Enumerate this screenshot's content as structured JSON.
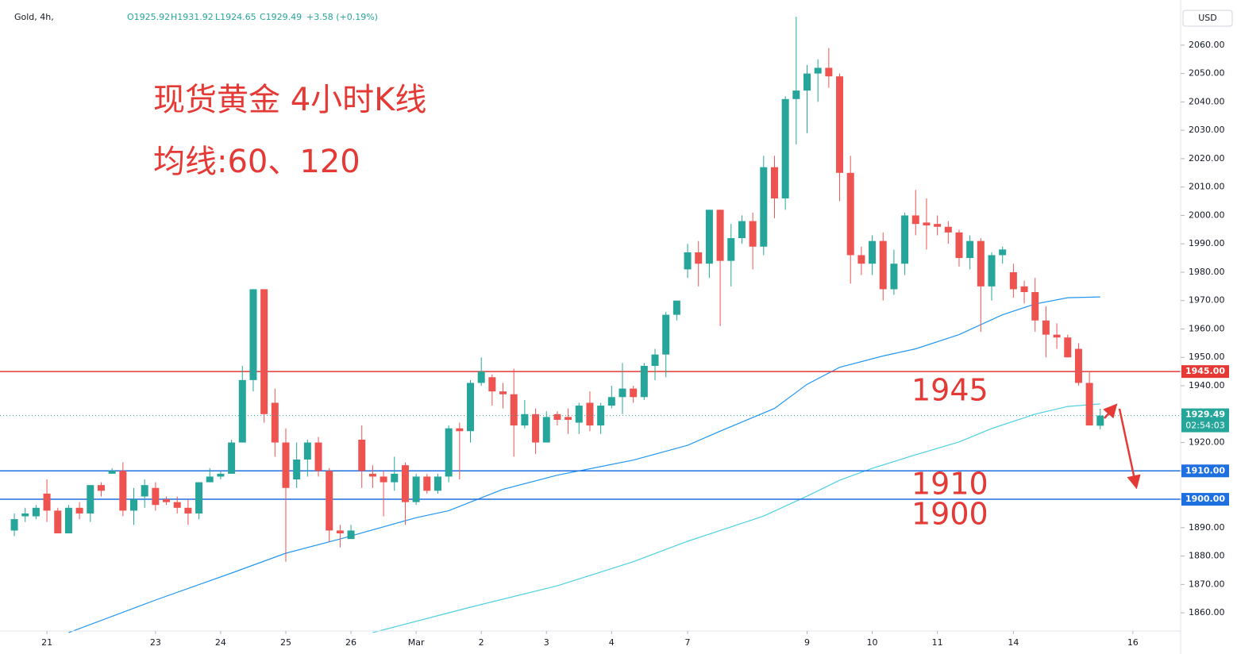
{
  "chart_data": {
    "type": "candlestick",
    "symbol": "Gold, 4h,",
    "ohlc": [
      "O1925.92",
      "H1931.92",
      "L1924.65",
      "C1929.49",
      "+3.58 (+0.19%)"
    ],
    "currency": "USD",
    "title": "现货黄金 4小时K线",
    "subtitle": "均线:60、120",
    "annotations": [
      "1945",
      "1910",
      "1900"
    ],
    "up_color": "#26a69a",
    "down_color": "#ef5350",
    "open": [
      1889,
      1894,
      1894,
      1902,
      1896,
      1888,
      1897,
      1895,
      1905,
      1909,
      1910,
      1896,
      1901,
      1904,
      1900,
      1899,
      1897,
      1895,
      1906,
      1908,
      1909,
      1920,
      1942,
      1974,
      1934,
      1920,
      1907,
      1914,
      1920,
      1910,
      1889,
      1886,
      1921,
      1909,
      1908,
      1906,
      1912,
      1899,
      1908,
      1903,
      1908,
      1925,
      1924,
      1941,
      1943,
      1938,
      1937,
      1926,
      1930,
      1920,
      1930,
      1929,
      1927,
      1934,
      1926,
      1933,
      1936,
      1939,
      1936,
      1947,
      1951,
      1965,
      1981,
      1987,
      1983,
      2002,
      1984,
      1992,
      1998,
      1989,
      2017,
      2006,
      2041,
      2044,
      2050,
      2052,
      2049,
      2015,
      1986,
      1983,
      1991,
      1974,
      1983,
      2000,
      1997.5,
      1997,
      1996,
      1994,
      1985,
      1991,
      1975,
      1986,
      1980,
      1975,
      1973,
      1963,
      1958,
      1957,
      1953,
      1941,
      1925.92
    ],
    "high": [
      1895,
      1897,
      1898,
      1907,
      1897,
      1898,
      1899,
      1905,
      1906,
      1911,
      1913,
      1904,
      1907,
      1906,
      1901,
      1901,
      1900,
      1906,
      1911,
      1910,
      1921,
      1947,
      1974,
      1974,
      1939,
      1925,
      1920,
      1921,
      1922,
      1911,
      1891,
      1891,
      1926,
      1912,
      1910,
      1915,
      1913,
      1909,
      1909,
      1909,
      1926,
      1927,
      1942,
      1950,
      1944,
      1941,
      1946,
      1935,
      1932,
      1931,
      1931,
      1932,
      1934,
      1938,
      1934,
      1940,
      1948,
      1940,
      1948,
      1953,
      1966,
      1970,
      1990,
      1991,
      2002,
      2002,
      1997,
      2000,
      2001,
      2021,
      2021,
      2042,
      2070,
      2053,
      2055,
      2059,
      2050,
      2021,
      1989,
      1993,
      1994,
      1988,
      2001,
      2009,
      2006,
      2000,
      1998,
      1995,
      1993,
      1992,
      1987,
      1989,
      1983,
      1977,
      1978,
      1968,
      1962,
      1958,
      1955,
      1945,
      1931.92
    ],
    "low": [
      1887,
      1892,
      1893,
      1892,
      1888,
      1888,
      1893,
      1892,
      1901,
      1909,
      1894,
      1891,
      1897,
      1896,
      1898,
      1895,
      1891,
      1893,
      1906,
      1907,
      1909,
      1920,
      1938,
      1927,
      1915,
      1878,
      1904,
      1908,
      1908,
      1885,
      1883,
      1886,
      1904,
      1904,
      1894,
      1903,
      1891,
      1898,
      1902,
      1902,
      1906,
      1907,
      1920,
      1940,
      1933,
      1932,
      1915,
      1925,
      1916,
      1920,
      1926,
      1923,
      1923,
      1924,
      1923,
      1932,
      1930,
      1934,
      1935,
      1942,
      1943,
      1963,
      1978,
      1975,
      1978,
      1961,
      1975,
      1990,
      1981,
      1986,
      1999,
      2002,
      2025,
      2029,
      2040,
      2045,
      2005,
      1976,
      1979,
      1979,
      1970,
      1972,
      1979,
      1993,
      1988,
      1993,
      1990,
      1982,
      1981,
      1959,
      1970,
      1983,
      1971,
      1969,
      1959,
      1950,
      1953,
      1950,
      1940,
      1926,
      1924.65
    ],
    "close": [
      1893,
      1895,
      1897,
      1896,
      1888,
      1897,
      1895,
      1905,
      1903,
      1910,
      1896,
      1900,
      1905,
      1898,
      1899,
      1897,
      1895,
      1906,
      1908,
      1909,
      1920,
      1942,
      1974,
      1930,
      1920,
      1904,
      1914,
      1920,
      1910,
      1889,
      1888,
      1889,
      1910,
      1908,
      1906,
      1909,
      1899,
      1908,
      1903,
      1908,
      1925,
      1924,
      1941,
      1945,
      1938,
      1937,
      1926,
      1930,
      1920,
      1929,
      1928,
      1928,
      1933,
      1926,
      1933,
      1936,
      1939,
      1936,
      1947,
      1951,
      1965,
      1970,
      1987,
      1983,
      2002,
      1984,
      1992,
      1998,
      1989,
      2017,
      2006,
      2041,
      2044,
      2050,
      2052,
      2049,
      2015,
      1986,
      1983,
      1991,
      1974,
      1983,
      2000,
      1997,
      1996.5,
      1996,
      1994,
      1985,
      1991,
      1975,
      1986,
      1988,
      1974,
      1973,
      1963,
      1958,
      1957,
      1950,
      1941,
      1926,
      1929.49
    ],
    "ma": [
      {
        "color": "#2196f3",
        "x": [
          5,
          13,
          20,
          25,
          30,
          37,
          40,
          45,
          50,
          57,
          62,
          65,
          70,
          73,
          76,
          80,
          83,
          87,
          91,
          94,
          97,
          100
        ],
        "values": [
          1853,
          1864.5,
          1874,
          1881,
          1886,
          1893.5,
          1896,
          1903.5,
          1908.5,
          1913.8,
          1919,
          1924,
          1932,
          1940.5,
          1946.5,
          1950.5,
          1953,
          1958,
          1965,
          1968.8,
          1971,
          1971.3
        ]
      },
      {
        "color": "#4dd0e1",
        "x": [
          33,
          42,
          50,
          57,
          62,
          69,
          73,
          76,
          79,
          83,
          87,
          90,
          94,
          97,
          100
        ],
        "values": [
          1853,
          1862,
          1869.5,
          1878,
          1885.2,
          1894.1,
          1901.1,
          1906.7,
          1910.9,
          1915.7,
          1920.2,
          1924.9,
          1930,
          1932.7,
          1933.6
        ]
      }
    ],
    "levels": [
      {
        "value": 1945,
        "label": "1945.00",
        "color": "#e53935"
      },
      {
        "value": 1910,
        "label": "1910.00",
        "color": "#1e6fe0"
      },
      {
        "value": 1900,
        "label": "1900.00",
        "color": "#1e6fe0"
      }
    ],
    "last": {
      "value": 1929.49,
      "label": "1929.49",
      "countdown": "02:54:03",
      "color": "#26a69a"
    },
    "xlim": [
      -1.32,
      107.4
    ],
    "xticks": [
      {
        "value": 3,
        "label": "21"
      },
      {
        "value": 13,
        "label": "23"
      },
      {
        "value": 19,
        "label": "24"
      },
      {
        "value": 25,
        "label": "25"
      },
      {
        "value": 31,
        "label": "26"
      },
      {
        "value": 37,
        "label": "Mar"
      },
      {
        "value": 43,
        "label": "2"
      },
      {
        "value": 49,
        "label": "3"
      },
      {
        "value": 55,
        "label": "4"
      },
      {
        "value": 62,
        "label": "7"
      },
      {
        "value": 73,
        "label": "9"
      },
      {
        "value": 79,
        "label": "10"
      },
      {
        "value": 85,
        "label": "11"
      },
      {
        "value": 92,
        "label": "14"
      },
      {
        "value": 103,
        "label": "16"
      }
    ],
    "ylim": [
      1853.6,
      2075.9
    ],
    "yticks": [
      {
        "value": 1860,
        "label": "1860.00"
      },
      {
        "value": 1870,
        "label": "1870.00"
      },
      {
        "value": 1880,
        "label": "1880.00"
      },
      {
        "value": 1890,
        "label": "1890.00"
      },
      {
        "value": 1900,
        "label": "1900.00"
      },
      {
        "value": 1910,
        "label": "1910.00"
      },
      {
        "value": 1920,
        "label": "1920.00"
      },
      {
        "value": 1930,
        "label": "1930.00"
      },
      {
        "value": 1940,
        "label": "1940.00"
      },
      {
        "value": 1950,
        "label": "1950.00"
      },
      {
        "value": 1960,
        "label": "1960.00"
      },
      {
        "value": 1970,
        "label": "1970.00"
      },
      {
        "value": 1980,
        "label": "1980.00"
      },
      {
        "value": 1990,
        "label": "1990.00"
      },
      {
        "value": 2000,
        "label": "2000.00"
      },
      {
        "value": 2010,
        "label": "2010.00"
      },
      {
        "value": 2020,
        "label": "2020.00"
      },
      {
        "value": 2030,
        "label": "2030.00"
      },
      {
        "value": 2040,
        "label": "2040.00"
      },
      {
        "value": 2050,
        "label": "2050.00"
      },
      {
        "value": 2060,
        "label": "2060.00"
      }
    ]
  }
}
